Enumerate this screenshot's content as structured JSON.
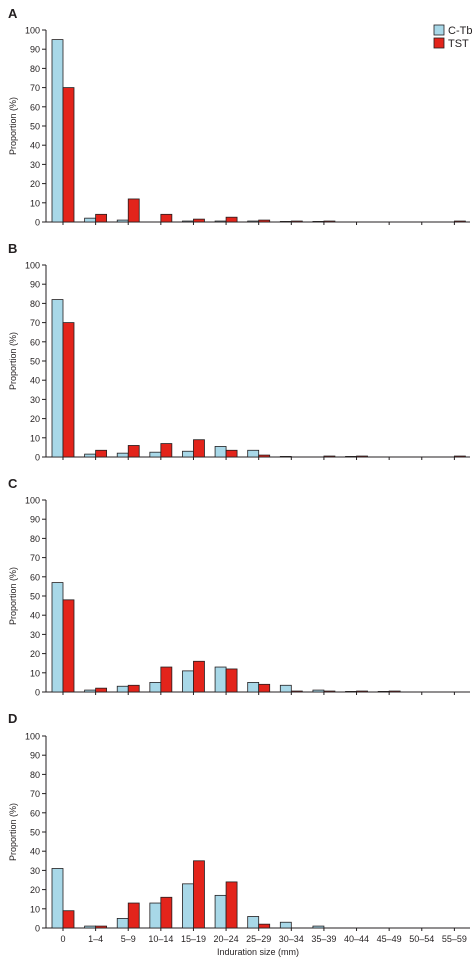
{
  "legend": {
    "position": "top-right",
    "items": [
      {
        "label": "C-Tb",
        "color": "#a8d8e8"
      },
      {
        "label": "TST",
        "color": "#e3241b"
      }
    ]
  },
  "colors": {
    "ctb": "#a8d8e8",
    "tst": "#e3241b",
    "outline": "#231f20"
  },
  "chart_data": [
    {
      "type": "bar",
      "panel_label": "A",
      "categories": [
        "0",
        "1–4",
        "5–9",
        "10–14",
        "15–19",
        "20–24",
        "25–29",
        "30–34",
        "35–39",
        "40–44",
        "45–49",
        "50–54",
        "55–59"
      ],
      "series": [
        {
          "name": "C-Tb",
          "values": [
            95,
            2,
            1,
            0,
            0.5,
            0.5,
            0.5,
            0.3,
            0.3,
            0,
            0,
            0,
            0
          ]
        },
        {
          "name": "TST",
          "values": [
            70,
            4,
            12,
            4,
            1.5,
            2.5,
            1,
            0.5,
            0.5,
            0,
            0,
            0,
            0.5
          ]
        }
      ],
      "ylabel": "Proportion (%)",
      "xlabel": "",
      "ylim": [
        0,
        100
      ],
      "yticks": [
        "0",
        "10",
        "20",
        "30",
        "40",
        "50",
        "60",
        "70",
        "80",
        "90",
        "100"
      ],
      "grid": false
    },
    {
      "type": "bar",
      "panel_label": "B",
      "categories": [
        "0",
        "1–4",
        "5–9",
        "10–14",
        "15–19",
        "20–24",
        "25–29",
        "30–34",
        "35–39",
        "40–44",
        "45–49",
        "50–54",
        "55–59"
      ],
      "series": [
        {
          "name": "C-Tb",
          "values": [
            82,
            1.5,
            2,
            2.5,
            3,
            5.5,
            3.5,
            0.3,
            0,
            0.3,
            0,
            0,
            0
          ]
        },
        {
          "name": "TST",
          "values": [
            70,
            3.5,
            6,
            7,
            9,
            3.5,
            1,
            0,
            0.5,
            0.5,
            0,
            0,
            0.5
          ]
        }
      ],
      "ylabel": "Proportion (%)",
      "xlabel": "",
      "ylim": [
        0,
        100
      ],
      "yticks": [
        "0",
        "10",
        "20",
        "30",
        "40",
        "50",
        "60",
        "70",
        "80",
        "90",
        "100"
      ],
      "grid": false
    },
    {
      "type": "bar",
      "panel_label": "C",
      "categories": [
        "0",
        "1–4",
        "5–9",
        "10–14",
        "15–19",
        "20–24",
        "25–29",
        "30–34",
        "35–39",
        "40–44",
        "45–49",
        "50–54",
        "55–59"
      ],
      "series": [
        {
          "name": "C-Tb",
          "values": [
            57,
            1,
            3,
            5,
            11,
            13,
            5,
            3.5,
            1,
            0.3,
            0.3,
            0,
            0
          ]
        },
        {
          "name": "TST",
          "values": [
            48,
            2,
            3.5,
            13,
            16,
            12,
            4,
            0.5,
            0.5,
            0.5,
            0.5,
            0,
            0
          ]
        }
      ],
      "ylabel": "Proportion (%)",
      "xlabel": "",
      "ylim": [
        0,
        100
      ],
      "yticks": [
        "0",
        "10",
        "20",
        "30",
        "40",
        "50",
        "60",
        "70",
        "80",
        "90",
        "100"
      ],
      "grid": false
    },
    {
      "type": "bar",
      "panel_label": "D",
      "categories": [
        "0",
        "1–4",
        "5–9",
        "10–14",
        "15–19",
        "20–24",
        "25–29",
        "30–34",
        "35–39",
        "40–44",
        "45–49",
        "50–54",
        "55–59"
      ],
      "series": [
        {
          "name": "C-Tb",
          "values": [
            31,
            1,
            5,
            13,
            23,
            17,
            6,
            3,
            1,
            0,
            0,
            0,
            0
          ]
        },
        {
          "name": "TST",
          "values": [
            9,
            1,
            13,
            16,
            35,
            24,
            2,
            0,
            0,
            0,
            0,
            0,
            0
          ]
        }
      ],
      "ylabel": "Proportion (%)",
      "xlabel": "Induration size (mm)",
      "ylim": [
        0,
        100
      ],
      "yticks": [
        "0",
        "10",
        "20",
        "30",
        "40",
        "50",
        "60",
        "70",
        "80",
        "90",
        "100"
      ],
      "grid": false
    }
  ]
}
